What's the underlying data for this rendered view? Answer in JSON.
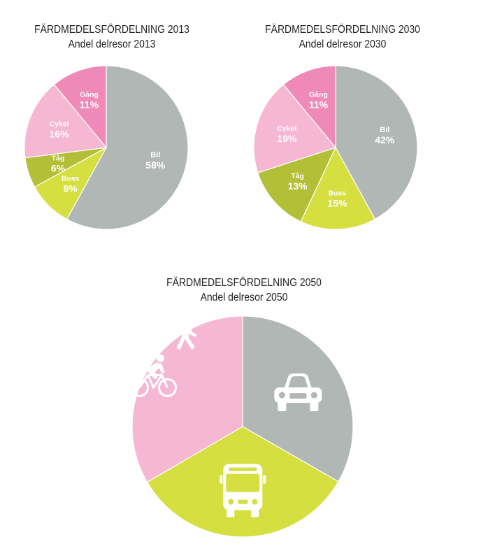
{
  "colors": {
    "bil": "#b1b7b5",
    "buss": "#d5df3f",
    "tag": "#b2bf37",
    "cykel": "#f5b7d1",
    "gang": "#ef89b8",
    "icon": "#ffffff"
  },
  "chart_data": [
    {
      "type": "pie",
      "title": "FÄRDMEDELSFÖRDELNING 2013",
      "subtitle": "Andel delresor 2013",
      "slices": [
        {
          "name": "Bil",
          "value": 58,
          "value_label": "58%",
          "color_key": "bil"
        },
        {
          "name": "Buss",
          "value": 9,
          "value_label": "9%",
          "color_key": "buss"
        },
        {
          "name": "Tåg",
          "value": 6,
          "value_label": "6%",
          "color_key": "tag"
        },
        {
          "name": "Cykel",
          "value": 16,
          "value_label": "16%",
          "color_key": "cykel"
        },
        {
          "name": "Gång",
          "value": 11,
          "value_label": "11%",
          "color_key": "gang"
        }
      ]
    },
    {
      "type": "pie",
      "title": "FÄRDMEDELSFÖRDELNING 2030",
      "subtitle": "Andel delresor 2030",
      "slices": [
        {
          "name": "Bil",
          "value": 42,
          "value_label": "42%",
          "color_key": "bil"
        },
        {
          "name": "Buss",
          "value": 15,
          "value_label": "15%",
          "color_key": "buss"
        },
        {
          "name": "Tåg",
          "value": 13,
          "value_label": "13%",
          "color_key": "tag"
        },
        {
          "name": "Cykel",
          "value": 19,
          "value_label": "19%",
          "color_key": "cykel"
        },
        {
          "name": "Gång",
          "value": 11,
          "value_label": "11%",
          "color_key": "gang"
        }
      ]
    },
    {
      "type": "pie",
      "title": "FÄRDMEDELSFÖRDELNING 2050",
      "subtitle": "Andel delresor 2050",
      "slices": [
        {
          "value": 33.3,
          "color_key": "bil",
          "icon": "car-icon"
        },
        {
          "value": 33.3,
          "color_key": "buss",
          "icon": "bus-icon"
        },
        {
          "value": 33.4,
          "color_key": "cykel",
          "icon": "walk-and-bike-icon"
        }
      ]
    }
  ]
}
